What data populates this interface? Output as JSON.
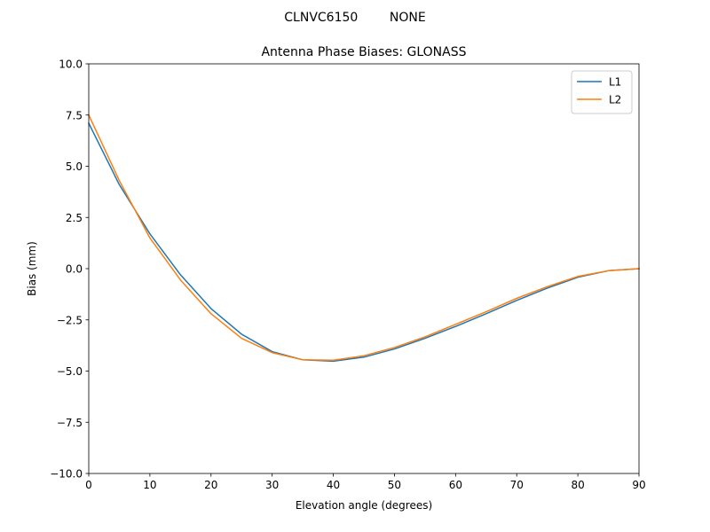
{
  "chart_data": {
    "type": "line",
    "suptitle": "CLNVC6150        NONE",
    "title": "Antenna Phase Biases: GLONASS",
    "xlabel": "Elevation angle (degrees)",
    "ylabel": "Bias (mm)",
    "xlim": [
      0,
      90
    ],
    "ylim": [
      -10,
      10
    ],
    "xticks": [
      0,
      10,
      20,
      30,
      40,
      50,
      60,
      70,
      80,
      90
    ],
    "yticks": [
      -10.0,
      -7.5,
      -5.0,
      -2.5,
      0.0,
      2.5,
      5.0,
      7.5,
      10.0
    ],
    "ytick_labels": [
      "−10.0",
      "−7.5",
      "−5.0",
      "−2.5",
      "0.0",
      "2.5",
      "5.0",
      "7.5",
      "10.0"
    ],
    "grid": false,
    "legend_position": "top-right",
    "x": [
      0,
      5,
      10,
      15,
      20,
      25,
      30,
      35,
      40,
      45,
      50,
      55,
      60,
      65,
      70,
      75,
      80,
      85,
      90
    ],
    "series": [
      {
        "name": "L1",
        "color": "#1f77b4",
        "values": [
          7.1,
          4.1,
          1.7,
          -0.3,
          -1.95,
          -3.2,
          -4.05,
          -4.45,
          -4.52,
          -4.32,
          -3.92,
          -3.4,
          -2.82,
          -2.2,
          -1.55,
          -0.95,
          -0.42,
          -0.1,
          0.0
        ]
      },
      {
        "name": "L2",
        "color": "#ff7f0e",
        "values": [
          7.5,
          4.3,
          1.5,
          -0.55,
          -2.2,
          -3.4,
          -4.1,
          -4.45,
          -4.47,
          -4.25,
          -3.85,
          -3.33,
          -2.72,
          -2.1,
          -1.45,
          -0.88,
          -0.38,
          -0.1,
          0.0
        ]
      }
    ]
  }
}
